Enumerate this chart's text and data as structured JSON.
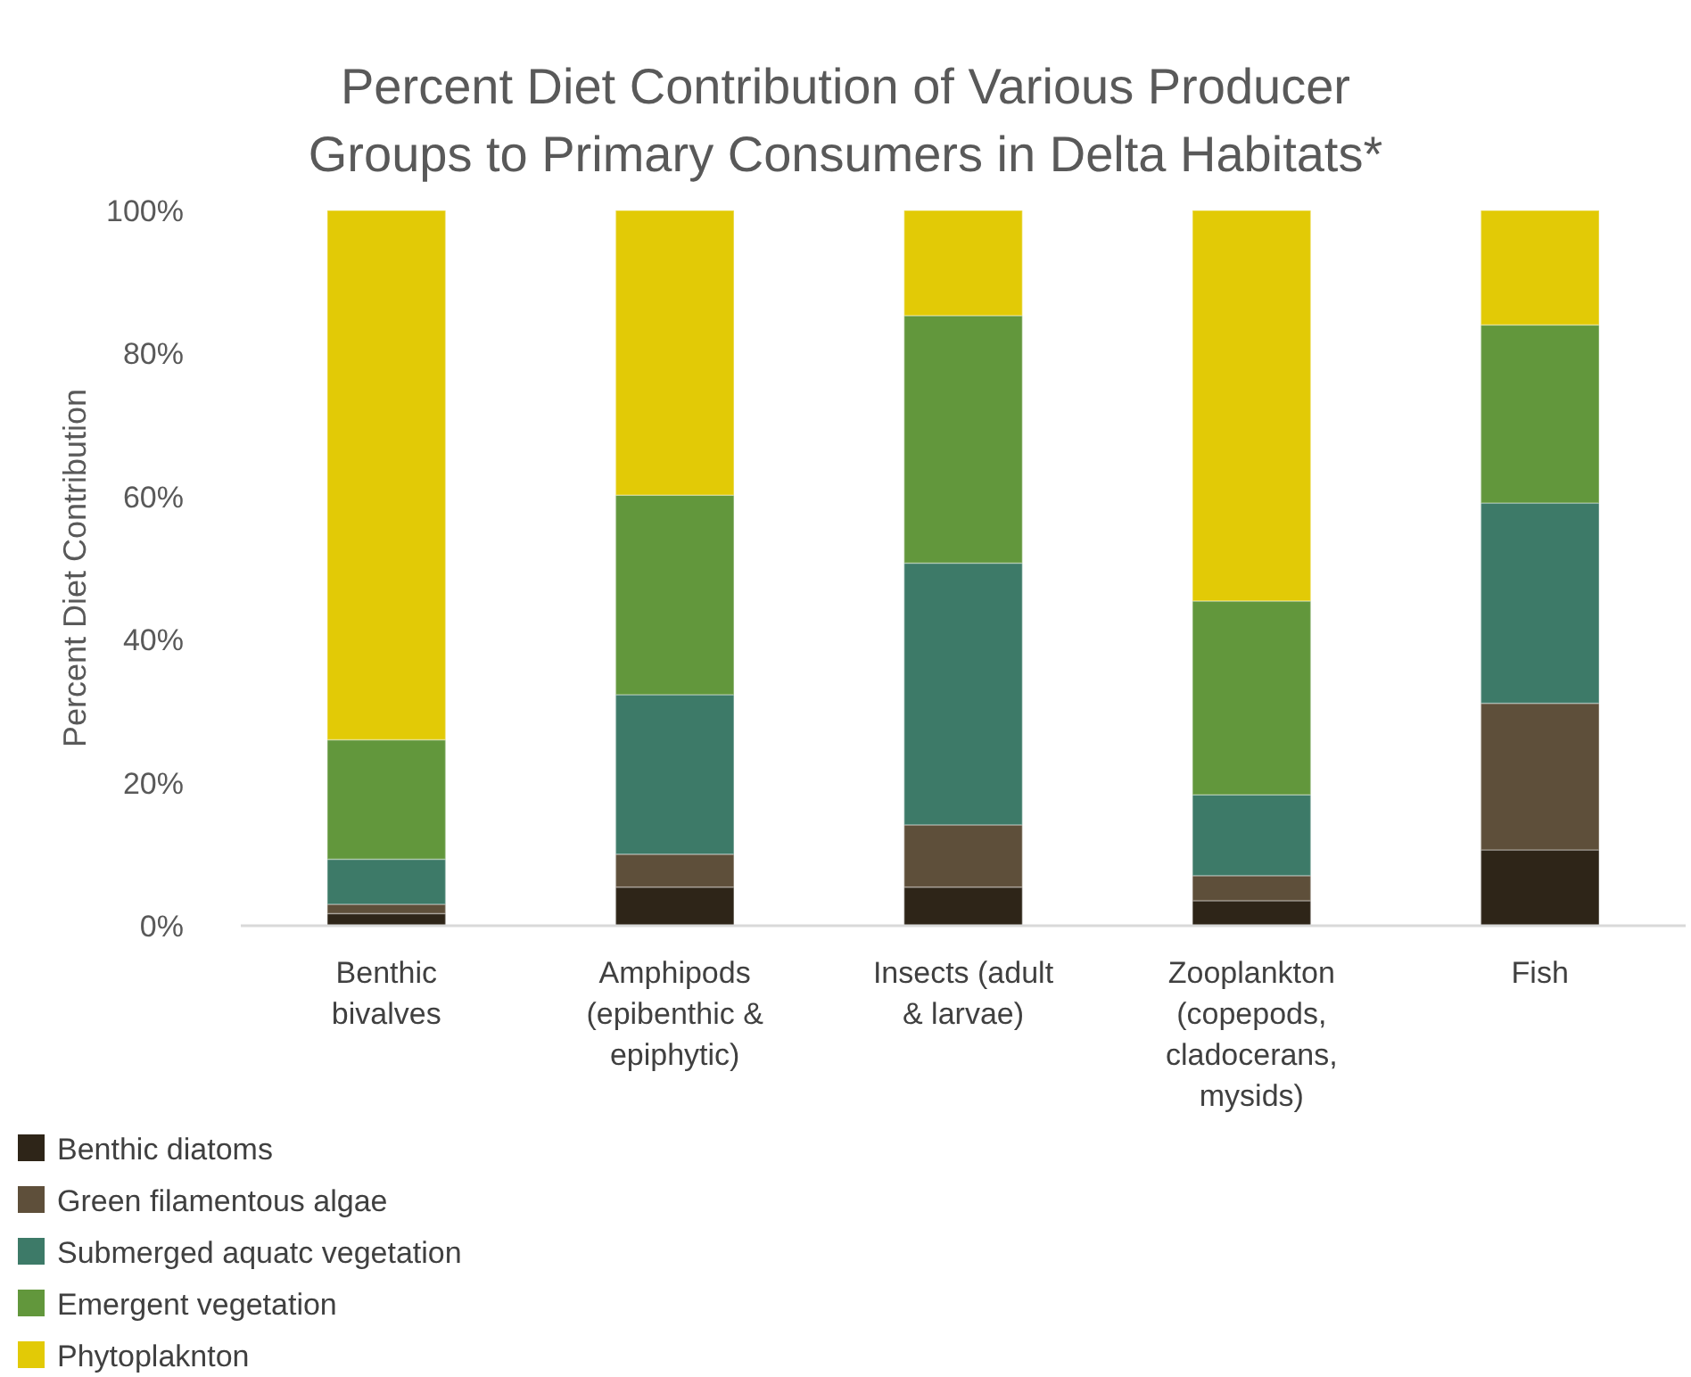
{
  "chart_data": {
    "type": "bar",
    "stacked": true,
    "title": "Percent Diet Contribution of Various Producer Groups to Primary Consumers in Delta Habitats*",
    "ylabel": "Percent Diet Contribution",
    "categories": [
      "Benthic bivalves",
      "Amphipods (epibenthic & epiphytic)",
      "Insects (adult & larvae)",
      "Zooplankton (copepods, cladocerans, mysids)",
      "Fish"
    ],
    "series": [
      {
        "name": "Benthic diatoms",
        "color": "#2e2518",
        "values": [
          1.7,
          5.4,
          5.4,
          3.5,
          10.6
        ]
      },
      {
        "name": "Green filamentous algae",
        "color": "#5e4f3a",
        "values": [
          1.3,
          4.6,
          8.7,
          3.5,
          20.5
        ]
      },
      {
        "name": "Submerged aquatc vegetation",
        "color": "#3d7a68",
        "values": [
          6.3,
          22.3,
          36.6,
          11.3,
          28.0
        ]
      },
      {
        "name": "Emergent vegetation",
        "color": "#62973c",
        "values": [
          16.7,
          27.9,
          34.6,
          27.1,
          24.9
        ]
      },
      {
        "name": "Phytoplaknton",
        "color": "#e2ca06",
        "values": [
          74.0,
          39.8,
          14.7,
          54.6,
          16.0
        ]
      }
    ],
    "ylim": [
      0,
      100
    ],
    "yticks": [
      {
        "value": 0,
        "label": "0%"
      },
      {
        "value": 20,
        "label": "20%"
      },
      {
        "value": 40,
        "label": "40%"
      },
      {
        "value": 60,
        "label": "60%"
      },
      {
        "value": 80,
        "label": "80%"
      },
      {
        "value": 100,
        "label": "100%"
      }
    ],
    "grid": false,
    "legend": "bottom left"
  }
}
